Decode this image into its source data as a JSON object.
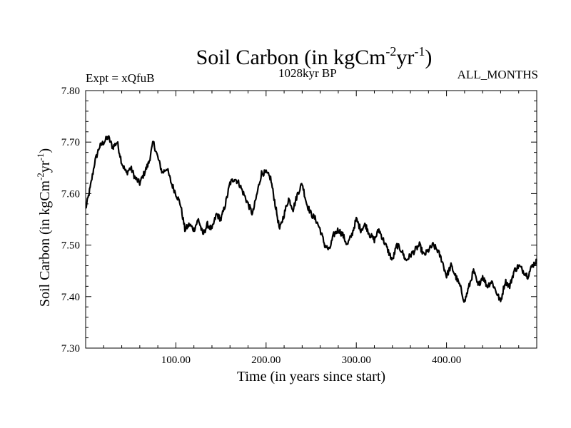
{
  "header": {
    "title_main": "Soil Carbon (in kgCm",
    "title_sup1": "-2",
    "title_mid": "yr",
    "title_sup2": "-1",
    "title_end": ")",
    "expt": "Expt = xQfuB",
    "period": "1028kyr BP",
    "months": "ALL_MONTHS"
  },
  "axes": {
    "xlabel": "Time (in years since start)",
    "ylabel_main": "Soil Carbon (in kgCm",
    "ylabel_sup1": "-2",
    "ylabel_mid": "yr",
    "ylabel_sup2": "-1",
    "ylabel_end": ")"
  },
  "colors": {
    "line": "#000000",
    "frame": "#000000",
    "background": "#ffffff"
  },
  "chart_data": {
    "type": "line",
    "title": "Soil Carbon (in kgCm-2yr-1)",
    "xlabel": "Time (in years since start)",
    "ylabel": "Soil Carbon (in kgCm-2yr-1)",
    "xlim": [
      0,
      500
    ],
    "ylim": [
      7.3,
      7.8
    ],
    "x_ticks": [
      100,
      200,
      300,
      400
    ],
    "x_tick_labels": [
      "100.00",
      "200.00",
      "300.00",
      "400.00"
    ],
    "y_ticks": [
      7.3,
      7.4,
      7.5,
      7.6,
      7.7,
      7.8
    ],
    "y_tick_labels": [
      "7.30",
      "7.40",
      "7.50",
      "7.60",
      "7.70",
      "7.80"
    ],
    "series": [
      {
        "name": "Soil Carbon",
        "x": [
          0,
          5,
          10,
          15,
          20,
          25,
          30,
          35,
          40,
          45,
          50,
          55,
          60,
          65,
          70,
          75,
          80,
          85,
          90,
          95,
          100,
          105,
          110,
          115,
          120,
          125,
          130,
          135,
          140,
          145,
          150,
          155,
          160,
          165,
          170,
          175,
          180,
          185,
          190,
          195,
          200,
          205,
          210,
          215,
          220,
          225,
          230,
          235,
          240,
          245,
          250,
          255,
          260,
          265,
          270,
          275,
          280,
          285,
          290,
          295,
          300,
          305,
          310,
          315,
          320,
          325,
          330,
          335,
          340,
          345,
          350,
          355,
          360,
          365,
          370,
          375,
          380,
          385,
          390,
          395,
          400,
          405,
          410,
          415,
          420,
          425,
          430,
          435,
          440,
          445,
          450,
          455,
          460,
          465,
          470,
          475,
          480,
          485,
          490,
          495,
          500
        ],
        "values": [
          7.57,
          7.61,
          7.66,
          7.69,
          7.7,
          7.71,
          7.69,
          7.7,
          7.66,
          7.64,
          7.65,
          7.63,
          7.62,
          7.64,
          7.66,
          7.7,
          7.67,
          7.64,
          7.65,
          7.62,
          7.6,
          7.58,
          7.53,
          7.54,
          7.53,
          7.55,
          7.52,
          7.54,
          7.53,
          7.56,
          7.55,
          7.58,
          7.62,
          7.63,
          7.62,
          7.6,
          7.58,
          7.56,
          7.6,
          7.64,
          7.64,
          7.63,
          7.58,
          7.53,
          7.56,
          7.59,
          7.57,
          7.6,
          7.62,
          7.58,
          7.56,
          7.55,
          7.53,
          7.5,
          7.49,
          7.52,
          7.53,
          7.52,
          7.5,
          7.52,
          7.55,
          7.53,
          7.54,
          7.52,
          7.51,
          7.53,
          7.51,
          7.49,
          7.47,
          7.5,
          7.49,
          7.47,
          7.48,
          7.49,
          7.5,
          7.48,
          7.49,
          7.5,
          7.49,
          7.47,
          7.44,
          7.46,
          7.44,
          7.42,
          7.39,
          7.42,
          7.45,
          7.42,
          7.44,
          7.42,
          7.43,
          7.41,
          7.39,
          7.43,
          7.42,
          7.45,
          7.46,
          7.45,
          7.44,
          7.46,
          7.47
        ]
      }
    ]
  }
}
